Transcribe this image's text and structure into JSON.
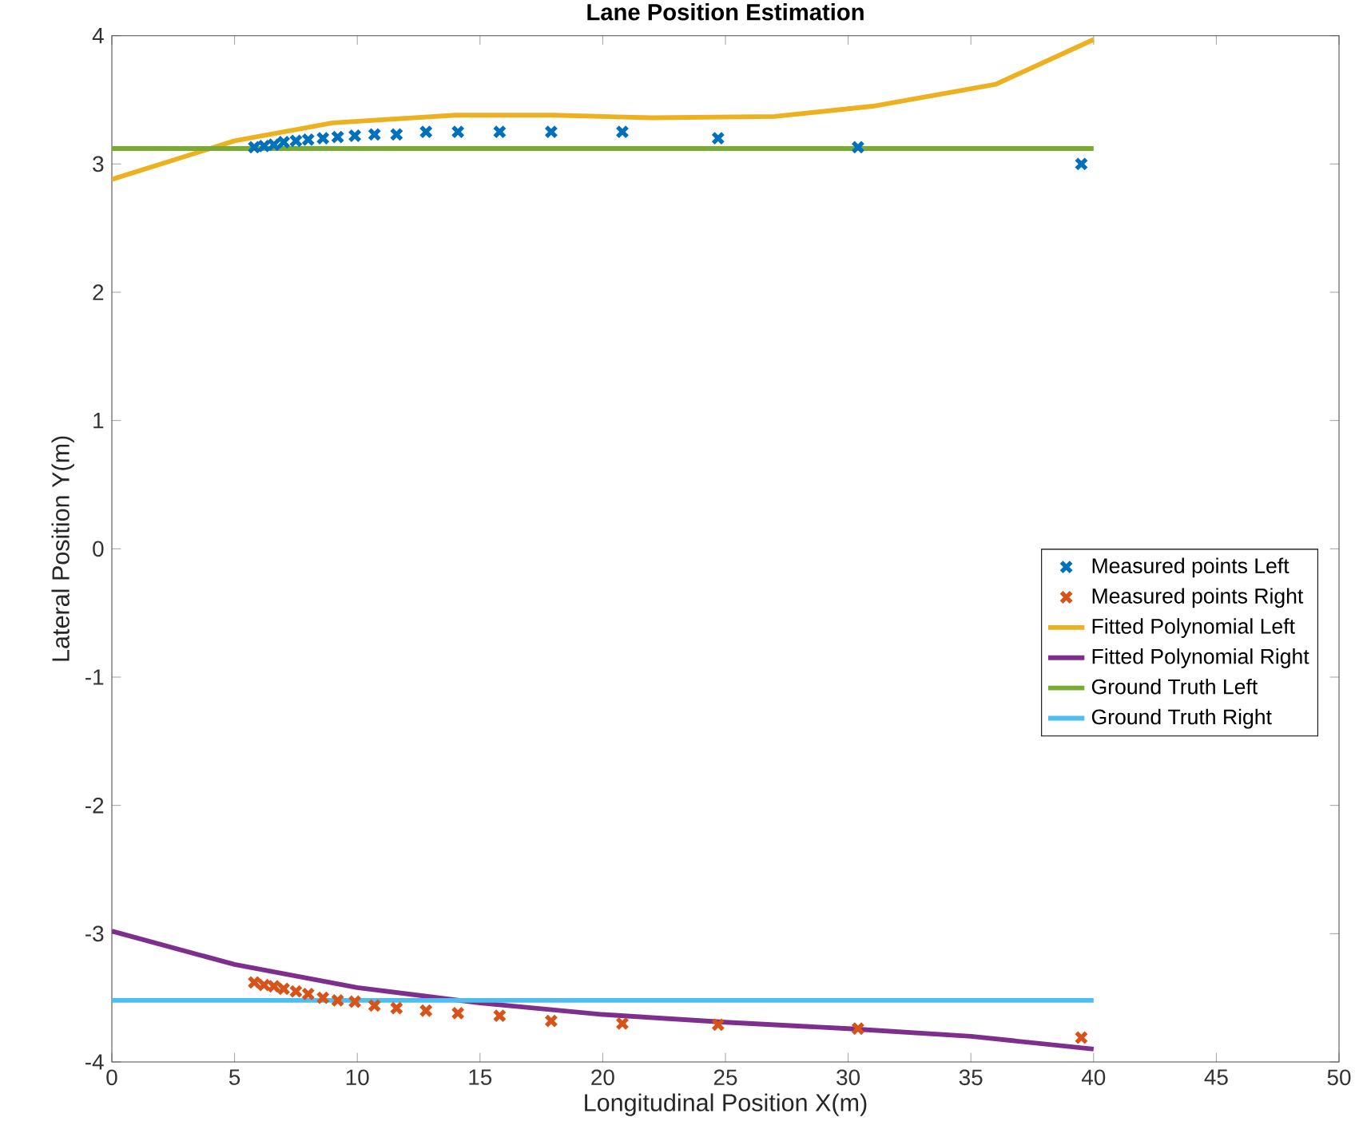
{
  "chart_data": {
    "type": "scatter",
    "title": "Lane Position Estimation",
    "xlabel": "Longitudinal Position X(m)",
    "ylabel": "Lateral Position Y(m)",
    "xlim": [
      0,
      50
    ],
    "ylim": [
      -4,
      4
    ],
    "xticks": [
      0,
      5,
      10,
      15,
      20,
      25,
      30,
      35,
      40,
      45,
      50
    ],
    "yticks": [
      -4,
      -3,
      -2,
      -1,
      0,
      1,
      2,
      3,
      4
    ],
    "grid": false,
    "legend": "right",
    "line_style": "solid",
    "series": [
      {
        "name": "Measured points Left",
        "marker": "cross",
        "color": "#0072bd",
        "x": [
          5.8,
          6.2,
          6.6,
          7.0,
          7.5,
          8.0,
          8.6,
          9.2,
          9.9,
          10.7,
          11.6,
          12.8,
          14.1,
          15.8,
          17.9,
          20.8,
          24.7,
          30.4,
          39.5
        ],
        "values": [
          3.13,
          3.14,
          3.15,
          3.17,
          3.18,
          3.19,
          3.2,
          3.21,
          3.22,
          3.23,
          3.23,
          3.25,
          3.25,
          3.25,
          3.25,
          3.25,
          3.2,
          3.13,
          3.0
        ]
      },
      {
        "name": "Measured points Right",
        "marker": "cross",
        "color": "#d95319",
        "x": [
          5.8,
          6.2,
          6.6,
          7.0,
          7.5,
          8.0,
          8.6,
          9.2,
          9.9,
          10.7,
          11.6,
          12.8,
          14.1,
          15.8,
          17.9,
          20.8,
          24.7,
          30.4,
          39.5
        ],
        "values": [
          -3.38,
          -3.4,
          -3.41,
          -3.43,
          -3.45,
          -3.47,
          -3.5,
          -3.52,
          -3.53,
          -3.56,
          -3.58,
          -3.6,
          -3.62,
          -3.64,
          -3.68,
          -3.7,
          -3.71,
          -3.74,
          -3.81
        ]
      },
      {
        "name": "Fitted Polynomial Left",
        "type": "line",
        "color": "#edb120",
        "x": [
          0,
          5,
          9,
          14,
          18,
          22,
          27,
          31,
          36,
          40
        ],
        "values": [
          2.88,
          3.18,
          3.32,
          3.38,
          3.38,
          3.36,
          3.37,
          3.45,
          3.62,
          3.97
        ]
      },
      {
        "name": "Fitted Polynomial Right",
        "type": "line",
        "color": "#7e2f8e",
        "x": [
          0,
          5,
          10,
          15,
          20,
          25,
          30,
          35,
          40
        ],
        "values": [
          -2.98,
          -3.24,
          -3.42,
          -3.54,
          -3.63,
          -3.69,
          -3.74,
          -3.8,
          -3.9
        ]
      },
      {
        "name": "Ground Truth Left",
        "type": "line",
        "color": "#77ac30",
        "x": [
          0,
          40
        ],
        "values": [
          3.12,
          3.12
        ]
      },
      {
        "name": "Ground Truth Right",
        "type": "line",
        "color": "#4dbeee",
        "x": [
          0,
          40
        ],
        "values": [
          -3.52,
          -3.52
        ]
      }
    ]
  }
}
